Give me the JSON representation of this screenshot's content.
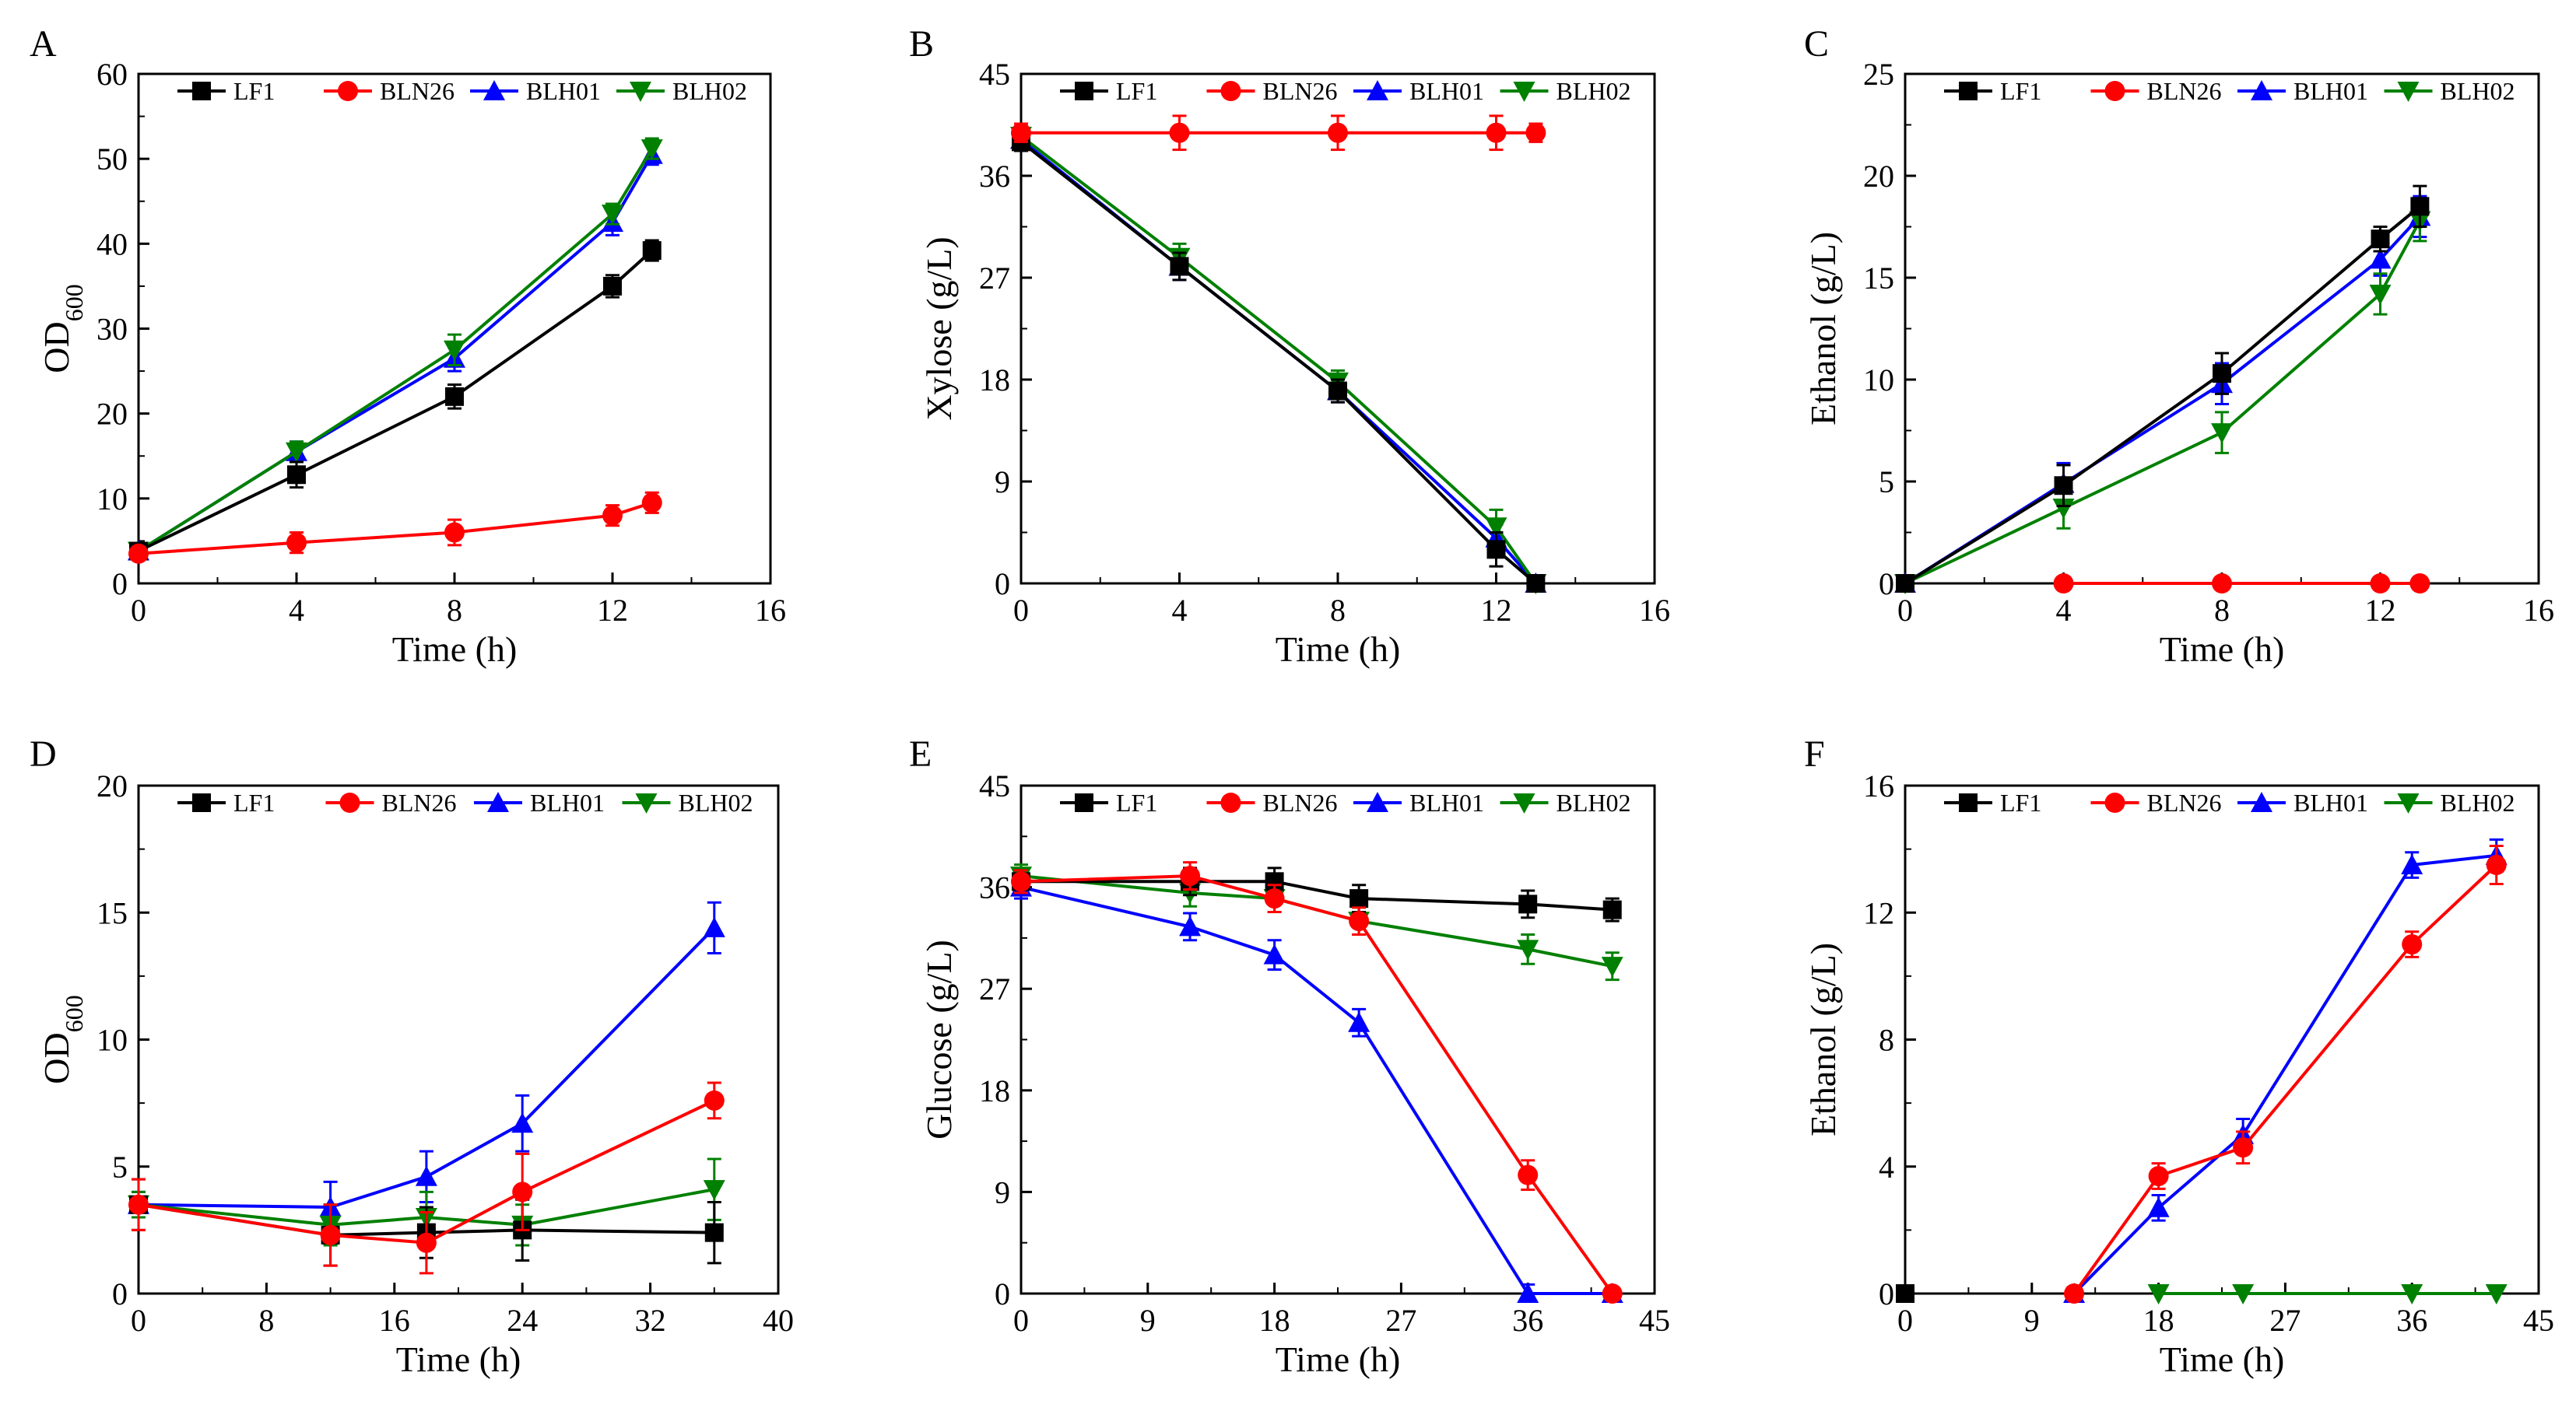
{
  "colors": {
    "LF1": "#000000",
    "BLN26": "#ff0000",
    "BLH01": "#0000ff",
    "BLH02": "#008000"
  },
  "legend": [
    "LF1",
    "BLN26",
    "BLH01",
    "BLH02"
  ],
  "chart_data": [
    {
      "panel": "A",
      "type": "line",
      "xlabel": "Time (h)",
      "ylabel": "OD600",
      "ylabel_main": "OD",
      "ylabel_sub": "600",
      "xlim": [
        0,
        16
      ],
      "ylim": [
        0,
        60
      ],
      "xticks": [
        0,
        4,
        8,
        12,
        16
      ],
      "yticks": [
        0,
        10,
        20,
        30,
        40,
        50,
        60
      ],
      "series": [
        {
          "name": "LF1",
          "x": [
            0,
            4,
            8,
            12,
            13
          ],
          "y": [
            3.8,
            12.8,
            22.0,
            35.0,
            39.2
          ],
          "err": [
            0.5,
            1.5,
            1.4,
            1.3,
            1.2
          ]
        },
        {
          "name": "BLN26",
          "x": [
            0,
            4,
            8,
            12,
            13
          ],
          "y": [
            3.5,
            4.8,
            6.0,
            8.0,
            9.5
          ],
          "err": [
            0.5,
            1.2,
            1.5,
            1.2,
            1.2
          ]
        },
        {
          "name": "BLH01",
          "x": [
            0,
            4,
            8,
            12,
            13
          ],
          "y": [
            3.8,
            15.5,
            26.5,
            42.5,
            50.5
          ],
          "err": [
            0.5,
            1.2,
            1.5,
            1.5,
            1.2
          ]
        },
        {
          "name": "BLH02",
          "x": [
            0,
            4,
            8,
            12,
            13
          ],
          "y": [
            3.8,
            15.5,
            27.5,
            43.5,
            51.2
          ],
          "err": [
            0.5,
            1.2,
            1.8,
            1.2,
            1.2
          ]
        }
      ]
    },
    {
      "panel": "B",
      "type": "line",
      "xlabel": "Time (h)",
      "ylabel": "Xylose (g/L)",
      "xlim": [
        0,
        16
      ],
      "ylim": [
        0,
        45
      ],
      "xticks": [
        0,
        4,
        8,
        12,
        16
      ],
      "yticks": [
        0,
        9,
        18,
        27,
        36,
        45
      ],
      "series": [
        {
          "name": "LF1",
          "x": [
            0,
            4,
            8,
            12,
            13
          ],
          "y": [
            39.0,
            28.0,
            17.0,
            3.0,
            0
          ],
          "err": [
            0.8,
            1.2,
            1.0,
            1.5,
            0.3
          ]
        },
        {
          "name": "BLN26",
          "x": [
            0,
            4,
            8,
            12,
            13
          ],
          "y": [
            39.8,
            39.8,
            39.8,
            39.8,
            39.8
          ],
          "err": [
            0.8,
            1.5,
            1.5,
            1.5,
            0.8
          ]
        },
        {
          "name": "BLH01",
          "x": [
            0,
            4,
            8,
            12,
            13
          ],
          "y": [
            39.2,
            28.0,
            17.0,
            4.0,
            0
          ],
          "err": [
            0.8,
            1.2,
            1.0,
            1.2,
            0.3
          ]
        },
        {
          "name": "BLH02",
          "x": [
            0,
            4,
            8,
            12,
            13
          ],
          "y": [
            39.5,
            28.8,
            17.8,
            5.0,
            0
          ],
          "err": [
            0.8,
            1.2,
            1.0,
            1.5,
            0.3
          ]
        }
      ]
    },
    {
      "panel": "C",
      "type": "line",
      "xlabel": "Time (h)",
      "ylabel": "Ethanol (g/L)",
      "xlim": [
        0,
        16
      ],
      "ylim": [
        0,
        25
      ],
      "xticks": [
        0,
        4,
        8,
        12,
        16
      ],
      "yticks": [
        0,
        5,
        10,
        15,
        20,
        25
      ],
      "series": [
        {
          "name": "LF1",
          "x": [
            0,
            4,
            8,
            12,
            13
          ],
          "y": [
            0,
            4.8,
            10.3,
            16.9,
            18.5
          ],
          "err": [
            0.1,
            1.0,
            1.0,
            0.6,
            1.0
          ]
        },
        {
          "name": "BLN26",
          "x": [
            4,
            8,
            12,
            13
          ],
          "y": [
            0,
            0,
            0,
            0
          ],
          "err": [
            0,
            0,
            0,
            0
          ]
        },
        {
          "name": "BLH01",
          "x": [
            0,
            4,
            8,
            12,
            13
          ],
          "y": [
            0,
            4.9,
            9.8,
            15.9,
            18.0
          ],
          "err": [
            0.1,
            1.0,
            1.0,
            0.8,
            1.0
          ]
        },
        {
          "name": "BLH02",
          "x": [
            0,
            4,
            8,
            12,
            13
          ],
          "y": [
            0,
            3.7,
            7.4,
            14.2,
            17.8
          ],
          "err": [
            0.1,
            1.0,
            1.0,
            1.0,
            1.0
          ]
        }
      ]
    },
    {
      "panel": "D",
      "type": "line",
      "xlabel": "Time (h)",
      "ylabel": "OD600",
      "ylabel_main": "OD",
      "ylabel_sub": "600",
      "xlim": [
        0,
        40
      ],
      "ylim": [
        0,
        20
      ],
      "xticks": [
        0,
        8,
        16,
        24,
        32,
        40
      ],
      "yticks": [
        0,
        5,
        10,
        15,
        20
      ],
      "series": [
        {
          "name": "LF1",
          "x": [
            0,
            12,
            18,
            24,
            36
          ],
          "y": [
            3.5,
            2.3,
            2.4,
            2.5,
            2.4
          ],
          "err": [
            1.0,
            1.2,
            1.0,
            1.2,
            1.2
          ]
        },
        {
          "name": "BLN26",
          "x": [
            0,
            12,
            18,
            24,
            36
          ],
          "y": [
            3.5,
            2.3,
            2.0,
            4.0,
            7.6
          ],
          "err": [
            1.0,
            1.2,
            1.2,
            1.5,
            0.7
          ]
        },
        {
          "name": "BLH01",
          "x": [
            0,
            12,
            18,
            24,
            36
          ],
          "y": [
            3.5,
            3.4,
            4.6,
            6.7,
            14.4
          ],
          "err": [
            0.5,
            1.0,
            1.0,
            1.1,
            1.0
          ]
        },
        {
          "name": "BLH02",
          "x": [
            0,
            12,
            18,
            24,
            36
          ],
          "y": [
            3.5,
            2.7,
            3.0,
            2.7,
            4.1
          ],
          "err": [
            0.5,
            0.8,
            1.0,
            0.8,
            1.2
          ]
        }
      ]
    },
    {
      "panel": "E",
      "type": "line",
      "xlabel": "Time (h)",
      "ylabel": "Glucose (g/L)",
      "xlim": [
        0,
        45
      ],
      "ylim": [
        0,
        45
      ],
      "xticks": [
        0,
        9,
        18,
        27,
        36,
        45
      ],
      "yticks": [
        0,
        9,
        18,
        27,
        36,
        45
      ],
      "series": [
        {
          "name": "LF1",
          "x": [
            0,
            12,
            18,
            24,
            36,
            42
          ],
          "y": [
            36.5,
            36.5,
            36.5,
            35.0,
            34.5,
            34.0
          ],
          "err": [
            1.0,
            1.2,
            1.2,
            1.2,
            1.2,
            1.0
          ]
        },
        {
          "name": "BLN26",
          "x": [
            0,
            12,
            18,
            24,
            36,
            42
          ],
          "y": [
            36.5,
            37.0,
            35.0,
            33.0,
            10.5,
            0
          ],
          "err": [
            1.0,
            1.2,
            1.2,
            1.2,
            1.3,
            0.2
          ]
        },
        {
          "name": "BLH01",
          "x": [
            0,
            12,
            18,
            24,
            36,
            42
          ],
          "y": [
            36.0,
            32.5,
            30.0,
            24.0,
            0,
            0
          ],
          "err": [
            1.0,
            1.2,
            1.3,
            1.2,
            0.8,
            0.2
          ]
        },
        {
          "name": "BLH02",
          "x": [
            0,
            12,
            18,
            24,
            36,
            42
          ],
          "y": [
            37.0,
            35.5,
            35.0,
            33.0,
            30.5,
            29.0
          ],
          "err": [
            1.0,
            1.2,
            1.2,
            1.2,
            1.3,
            1.2
          ]
        }
      ]
    },
    {
      "panel": "F",
      "type": "line",
      "xlabel": "Time (h)",
      "ylabel": "Ethanol (g/L)",
      "xlim": [
        0,
        45
      ],
      "ylim": [
        0,
        16
      ],
      "xticks": [
        0,
        9,
        18,
        27,
        36,
        45
      ],
      "yticks": [
        0,
        4,
        8,
        12,
        16
      ],
      "series": [
        {
          "name": "LF1",
          "x": [
            0
          ],
          "y": [
            0
          ],
          "err": [
            0
          ]
        },
        {
          "name": "BLN26",
          "x": [
            12,
            18,
            24,
            36,
            42
          ],
          "y": [
            0,
            3.7,
            4.6,
            11.0,
            13.5
          ],
          "err": [
            0.1,
            0.4,
            0.5,
            0.4,
            0.6
          ]
        },
        {
          "name": "BLH01",
          "x": [
            12,
            18,
            24,
            36,
            42
          ],
          "y": [
            0,
            2.7,
            5.0,
            13.5,
            13.8
          ],
          "err": [
            0.1,
            0.4,
            0.5,
            0.4,
            0.5
          ]
        },
        {
          "name": "BLH02",
          "x": [
            18,
            24,
            36,
            42
          ],
          "y": [
            0,
            0,
            0,
            0
          ],
          "err": [
            0,
            0,
            0,
            0
          ]
        }
      ]
    }
  ]
}
